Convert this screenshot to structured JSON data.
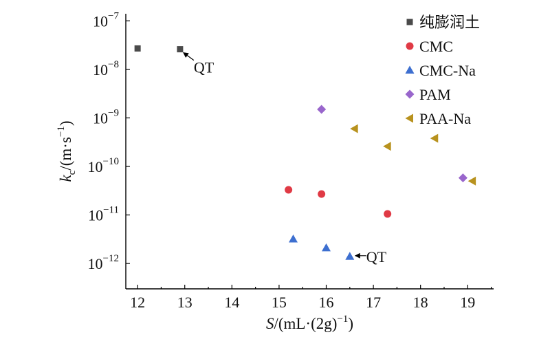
{
  "chart_data": {
    "type": "scatter",
    "title": "",
    "xlabel": {
      "text": "S/(mL·(2g)−1)",
      "var": "S",
      "rest": "/(mL·(2g)",
      "sup": "−1",
      "close": ")"
    },
    "ylabel": {
      "text": "kc/(m·s−1)",
      "var": "k",
      "sub": "c",
      "rest": "/(m·s",
      "sup": "−1",
      "close": ")"
    },
    "x_scale": "linear",
    "y_scale": "log",
    "xlim": [
      11.75,
      19.55
    ],
    "ylim": [
      3e-13,
      1.4e-07
    ],
    "x_ticks": [
      12,
      13,
      14,
      15,
      16,
      17,
      18,
      19
    ],
    "y_ticks": [
      {
        "value": 1e-12,
        "base": "10",
        "exp": "−12"
      },
      {
        "value": 1e-11,
        "base": "10",
        "exp": "−11"
      },
      {
        "value": 1e-10,
        "base": "10",
        "exp": "−10"
      },
      {
        "value": 1e-09,
        "base": "10",
        "exp": "−9"
      },
      {
        "value": 1e-08,
        "base": "10",
        "exp": "−8"
      },
      {
        "value": 1e-07,
        "base": "10",
        "exp": "−7"
      }
    ],
    "grid": false,
    "legend_position": "top-right",
    "series": [
      {
        "name": "纯膨润土",
        "marker": "square",
        "color": "#4a4a4a",
        "points": [
          {
            "x": 12.0,
            "y": 2.7e-08
          },
          {
            "x": 12.9,
            "y": 2.6e-08
          }
        ]
      },
      {
        "name": "CMC",
        "marker": "circle",
        "color": "#e03a45",
        "points": [
          {
            "x": 15.2,
            "y": 3.3e-11
          },
          {
            "x": 15.9,
            "y": 2.7e-11
          },
          {
            "x": 17.3,
            "y": 1.05e-11
          }
        ]
      },
      {
        "name": "CMC-Na",
        "marker": "triangle-up",
        "color": "#3d6fd0",
        "points": [
          {
            "x": 15.3,
            "y": 3.2e-12
          },
          {
            "x": 16.0,
            "y": 2.1e-12
          },
          {
            "x": 16.5,
            "y": 1.4e-12
          }
        ]
      },
      {
        "name": "PAM",
        "marker": "diamond",
        "color": "#9966cc",
        "points": [
          {
            "x": 15.9,
            "y": 1.5e-09
          },
          {
            "x": 18.9,
            "y": 5.8e-11
          }
        ]
      },
      {
        "name": "PAA-Na",
        "marker": "triangle-left",
        "color": "#b8921e",
        "points": [
          {
            "x": 16.6,
            "y": 6e-10
          },
          {
            "x": 17.3,
            "y": 2.6e-10
          },
          {
            "x": 18.3,
            "y": 3.8e-10
          },
          {
            "x": 19.1,
            "y": 5e-11
          }
        ]
      }
    ],
    "annotations": [
      {
        "text": "QT",
        "x": 12.9,
        "y": 2.6e-08,
        "placement": "lower-right"
      },
      {
        "text": "QT",
        "x": 16.5,
        "y": 1.4e-12,
        "placement": "right"
      }
    ]
  }
}
